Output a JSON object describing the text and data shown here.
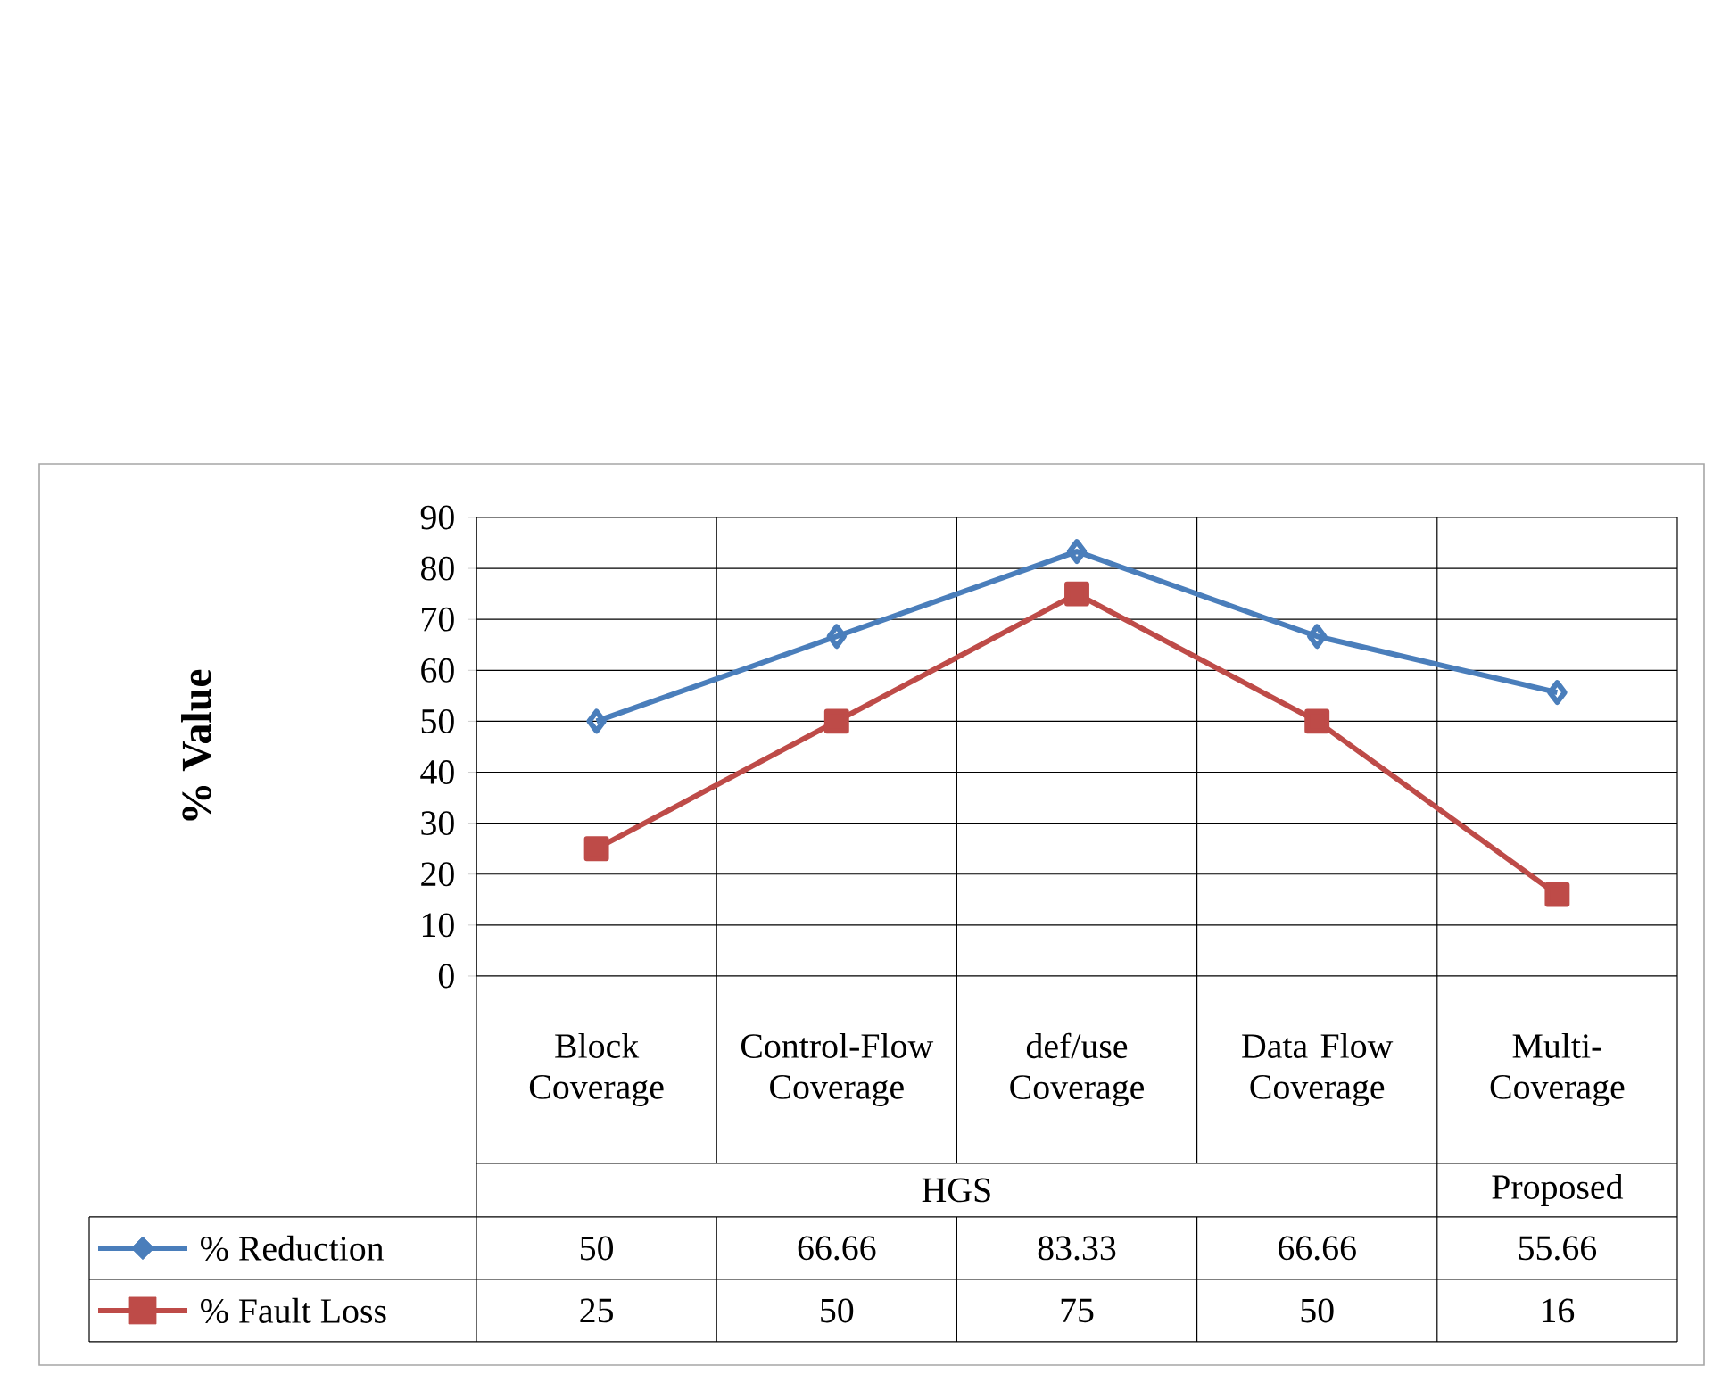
{
  "chart_data": {
    "type": "line",
    "ylabel": "% Value",
    "categories": [
      "Block Coverage",
      "Control-Flow Coverage",
      "def/use Coverage",
      "Data Flow Coverage",
      "Multi-Coverage"
    ],
    "annotations": [
      "HGS",
      "Proposed"
    ],
    "series": [
      {
        "name": "% Reduction",
        "color": "#4a7ebb",
        "marker": "diamond",
        "values": [
          50,
          66.66,
          83.33,
          66.66,
          55.66
        ]
      },
      {
        "name": "% Fault Loss",
        "color": "#be4b48",
        "marker": "square",
        "values": [
          25,
          50,
          75,
          50,
          16
        ]
      }
    ],
    "ylim": [
      0,
      90
    ],
    "yticks": [
      0,
      10,
      20,
      30,
      40,
      50,
      60,
      70,
      80,
      90
    ],
    "grid": true,
    "legend": "bottom left",
    "data_labels": true
  }
}
